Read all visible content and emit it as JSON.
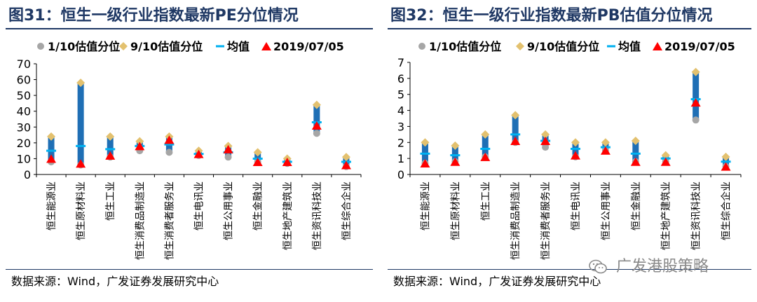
{
  "panels": [
    {
      "title": "图31：恒生一级行业指数最新PE分位情况",
      "source": "数据来源：Wind，广发证券发展研究中心"
    },
    {
      "title": "图32：恒生一级行业指数最新PB估值分位情况",
      "source": "数据来源：Wind，广发证券发展研究中心"
    }
  ],
  "watermark": {
    "text": "广发港股策略",
    "icon": "wechat-icon"
  },
  "colors": {
    "bar": "#1f6fb5",
    "p10": "#a6a6a6",
    "p90": "#e3c16f",
    "mean": "#00b0f0",
    "latest": "#ff0000",
    "title": "#1f3864"
  },
  "chart_data": [
    {
      "type": "range",
      "legend": [
        "1/10估值分位",
        "9/10估值分位",
        "均值",
        "2019/07/05"
      ],
      "legend_placement": "top",
      "categories": [
        "恒生能源业",
        "恒生原材料业",
        "恒生工业",
        "恒生消费品制造业",
        "恒生消费者服务业",
        "恒生电讯业",
        "恒生公用事业",
        "恒生金融业",
        "恒生地产建筑业",
        "恒生资讯科技业",
        "恒生综合企业"
      ],
      "p10": [
        8,
        6,
        11,
        15,
        14,
        12,
        11,
        8,
        7,
        26,
        5
      ],
      "p90": [
        24,
        58,
        24,
        21,
        24,
        15,
        18,
        14,
        10,
        44,
        11
      ],
      "mean": [
        15,
        18,
        16,
        18,
        19,
        13,
        14,
        10,
        8,
        33,
        8
      ],
      "latest": [
        10,
        7,
        12,
        18,
        22,
        13,
        16,
        8,
        8,
        31,
        6
      ],
      "ylim": [
        0,
        70
      ],
      "yticks": [
        0,
        10,
        20,
        30,
        40,
        50,
        60,
        70
      ],
      "grid": false
    },
    {
      "type": "range",
      "legend": [
        "1/10估值分位",
        "9/10估值分位",
        "均值",
        "2019/07/05"
      ],
      "legend_placement": "top",
      "categories": [
        "恒生能源业",
        "恒生原材料业",
        "恒生工业",
        "恒生消费品制造业",
        "恒生消费者服务业",
        "恒生电讯业",
        "恒生公用事业",
        "恒生金融业",
        "恒生地产建筑业",
        "恒生资讯科技业",
        "恒生综合企业"
      ],
      "p10": [
        0.7,
        0.8,
        1.1,
        2.0,
        1.7,
        1.1,
        1.5,
        0.8,
        0.8,
        3.4,
        0.5
      ],
      "p90": [
        2.0,
        1.8,
        2.5,
        3.7,
        2.5,
        2.0,
        2.0,
        2.1,
        1.2,
        6.4,
        1.1
      ],
      "mean": [
        1.3,
        1.2,
        1.6,
        2.5,
        2.1,
        1.6,
        1.7,
        1.3,
        1.0,
        4.7,
        0.8
      ],
      "latest": [
        0.7,
        0.8,
        1.1,
        2.1,
        2.1,
        1.2,
        1.5,
        0.8,
        0.8,
        4.5,
        0.5
      ],
      "ylim": [
        0,
        7
      ],
      "yticks": [
        0,
        1,
        2,
        3,
        4,
        5,
        6,
        7
      ],
      "grid": false
    }
  ]
}
